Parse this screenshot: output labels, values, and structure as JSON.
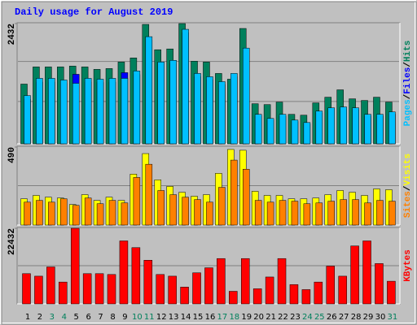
{
  "title": "Daily usage for August 2019",
  "separator": "/",
  "categories": [
    "1",
    "2",
    "3",
    "4",
    "5",
    "6",
    "7",
    "8",
    "9",
    "10",
    "11",
    "12",
    "13",
    "14",
    "15",
    "16",
    "17",
    "18",
    "19",
    "20",
    "21",
    "22",
    "23",
    "24",
    "25",
    "26",
    "27",
    "28",
    "29",
    "30",
    "31"
  ],
  "category_colors": [
    "#000000",
    "#000000",
    "#00805c",
    "#00805c",
    "#000000",
    "#000000",
    "#000000",
    "#000000",
    "#000000",
    "#00805c",
    "#00805c",
    "#000000",
    "#000000",
    "#000000",
    "#000000",
    "#000000",
    "#00805c",
    "#00805c",
    "#000000",
    "#000000",
    "#000000",
    "#000000",
    "#000000",
    "#00805c",
    "#00805c",
    "#000000",
    "#000000",
    "#000000",
    "#000000",
    "#000000",
    "#00805c"
  ],
  "chart_data": [
    {
      "type": "bar",
      "ylim": [
        0,
        2432
      ],
      "yticks": [
        2432
      ],
      "series": [
        {
          "name": "Hits",
          "color": "#00805c",
          "values": [
            1208,
            1555,
            1555,
            1555,
            1572,
            1555,
            1506,
            1522,
            1654,
            1737,
            2415,
            1903,
            1919,
            2432,
            1671,
            1654,
            1423,
            1307,
            2333,
            811,
            794,
            844,
            596,
            579,
            828,
            943,
            1092,
            910,
            877,
            943,
            844
          ]
        },
        {
          "name": "Files",
          "color": "#0000ff",
          "values": [
            900,
            1250,
            1250,
            1220,
            1406,
            1250,
            1240,
            1250,
            1439,
            1400,
            2100,
            1600,
            1620,
            2250,
            1360,
            1300,
            1200,
            1360,
            1880,
            560,
            480,
            560,
            450,
            400,
            620,
            690,
            700,
            690,
            560,
            560,
            600
          ]
        },
        {
          "name": "Pages",
          "color": "#00c0ff",
          "values": [
            976,
            1324,
            1324,
            1290,
            1224,
            1324,
            1307,
            1324,
            1324,
            1473,
            2167,
            1654,
            1688,
            2316,
            1423,
            1357,
            1257,
            1423,
            1936,
            596,
            513,
            596,
            480,
            430,
            662,
            728,
            745,
            728,
            596,
            596,
            645
          ]
        }
      ]
    },
    {
      "type": "bar",
      "ylim": [
        0,
        490
      ],
      "yticks": [
        490
      ],
      "series": [
        {
          "name": "Visits",
          "color": "#ffff00",
          "values": [
            165,
            186,
            175,
            170,
            129,
            191,
            155,
            175,
            155,
            320,
            449,
            284,
            243,
            206,
            181,
            191,
            325,
            475,
            470,
            212,
            186,
            186,
            165,
            165,
            170,
            191,
            217,
            206,
            186,
            227,
            222
          ]
        },
        {
          "name": "Sites",
          "color": "#ff8000",
          "values": [
            144,
            155,
            144,
            165,
            124,
            170,
            134,
            155,
            139,
            299,
            382,
            217,
            191,
            175,
            160,
            144,
            237,
            408,
            351,
            155,
            144,
            155,
            150,
            134,
            139,
            150,
            160,
            160,
            139,
            155,
            150
          ]
        }
      ]
    },
    {
      "type": "bar",
      "ylim": [
        0,
        22432
      ],
      "yticks": [
        22432
      ],
      "series": [
        {
          "name": "KBytes",
          "color": "#ff0000",
          "values": [
            8973,
            8225,
            10967,
            6480,
            22432,
            8973,
            8973,
            8724,
            18694,
            16699,
            12961,
            8724,
            8225,
            4985,
            9222,
            10717,
            13458,
            3739,
            13458,
            4486,
            7976,
            13458,
            5732,
            4237,
            6480,
            11216,
            8225,
            17197,
            18694,
            11965,
            6729
          ]
        }
      ]
    }
  ]
}
